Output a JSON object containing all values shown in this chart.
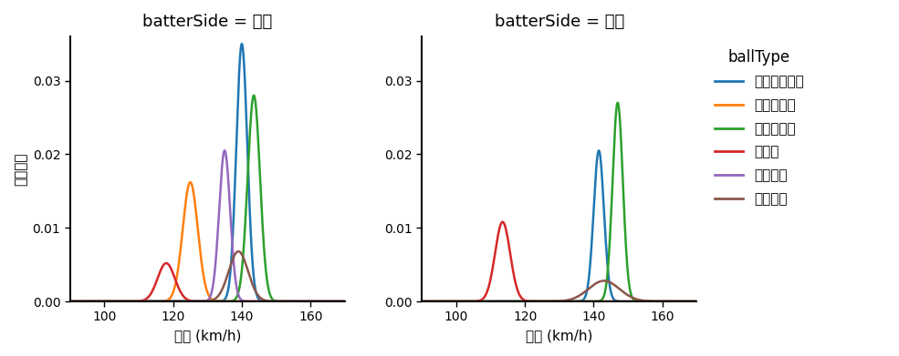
{
  "title_left": "batterSide = 左打",
  "title_right": "batterSide = 右打",
  "ylabel": "確率密度",
  "xlabel": "球速 (km/h)",
  "legend_title": "ballType",
  "ball_types": [
    "カットボール",
    "スライダー",
    "ストレート",
    "カーブ",
    "フォーク",
    "シュート"
  ],
  "colors": [
    "#1f77b4",
    "#ff7f0e",
    "#2ca02c",
    "#d62728",
    "#9467bd",
    "#8c564b"
  ],
  "xlim": [
    90,
    170
  ],
  "ylim": [
    0,
    0.036
  ],
  "left": {
    "cutball": {
      "mean": 140.0,
      "std": 1.6,
      "scale": 0.035
    },
    "slider": {
      "mean": 125.0,
      "std": 2.2,
      "scale": 0.0162
    },
    "straight": {
      "mean": 143.5,
      "std": 1.8,
      "scale": 0.028
    },
    "curve": {
      "mean": 118.0,
      "std": 2.5,
      "scale": 0.0052
    },
    "fork": {
      "mean": 135.0,
      "std": 1.6,
      "scale": 0.0205
    },
    "shoot": {
      "mean": 139.0,
      "std": 2.8,
      "scale": 0.0068
    }
  },
  "right": {
    "cutball": {
      "mean": 141.5,
      "std": 1.5,
      "scale": 0.0205
    },
    "slider": null,
    "straight": {
      "mean": 147.0,
      "std": 1.5,
      "scale": 0.027
    },
    "curve": {
      "mean": 113.5,
      "std": 2.2,
      "scale": 0.0108
    },
    "fork": null,
    "shoot": {
      "mean": 143.0,
      "std": 4.5,
      "scale": 0.0028
    }
  },
  "background_color": "#ffffff",
  "spine_color": "#000000",
  "yticks": [
    0.0,
    0.01,
    0.02,
    0.03
  ],
  "xticks": [
    100,
    120,
    140,
    160
  ],
  "figsize": [
    9.85,
    3.91
  ],
  "dpi": 100
}
